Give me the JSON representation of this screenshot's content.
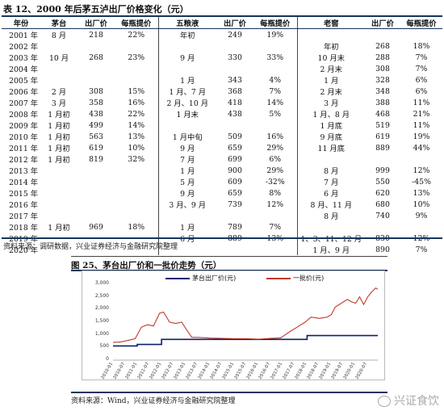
{
  "table": {
    "title": "表 12、2000 年后茅五泸出厂价格变化（元）",
    "headers": [
      "年份",
      "茅台",
      "出厂价",
      "每瓶提价",
      "五粮液",
      "出厂价",
      "每瓶提价",
      "老窖",
      "出厂价",
      "每瓶提价"
    ],
    "rows": [
      [
        "2001 年",
        "8 月",
        "218",
        "22%",
        "年初",
        "249",
        "19%",
        "",
        "",
        ""
      ],
      [
        "2002 年",
        "",
        "",
        "",
        "",
        "",
        "",
        "年初",
        "268",
        "18%"
      ],
      [
        "2003 年",
        "10 月",
        "268",
        "23%",
        "9 月",
        "330",
        "33%",
        "10 月末",
        "288",
        "7%"
      ],
      [
        "2004 年",
        "",
        "",
        "",
        "",
        "",
        "",
        "2 月末",
        "308",
        "7%"
      ],
      [
        "2005 年",
        "",
        "",
        "",
        "1 月",
        "343",
        "4%",
        "1 月",
        "328",
        "6%"
      ],
      [
        "2006 年",
        "2 月",
        "308",
        "15%",
        "1 月、7 月",
        "368",
        "7%",
        "2 月末",
        "348",
        "6%"
      ],
      [
        "2007 年",
        "3 月",
        "358",
        "16%",
        "2 月、10 月",
        "418",
        "14%",
        "3 月",
        "388",
        "11%"
      ],
      [
        "2008 年",
        "1 月初",
        "438",
        "22%",
        "1 月末",
        "438",
        "5%",
        "1 月、8 月",
        "468",
        "21%"
      ],
      [
        "2009 年",
        "1 月初",
        "499",
        "14%",
        "",
        "",
        "",
        "1 月底",
        "519",
        "11%"
      ],
      [
        "2010 年",
        "1 月初",
        "563",
        "13%",
        "1 月中旬",
        "509",
        "16%",
        "9 月底",
        "619",
        "19%"
      ],
      [
        "2011 年",
        "1 月初",
        "619",
        "10%",
        "9 月",
        "659",
        "29%",
        "11 月底",
        "889",
        "44%"
      ],
      [
        "2012 年",
        "1 月初",
        "819",
        "32%",
        "7 月",
        "699",
        "6%",
        "",
        "",
        ""
      ],
      [
        "2013 年",
        "",
        "",
        "",
        "1 月",
        "900",
        "29%",
        "8 月",
        "999",
        "12%"
      ],
      [
        "2014 年",
        "",
        "",
        "",
        "5 月",
        "609",
        "-32%",
        "7 月",
        "550",
        "-45%"
      ],
      [
        "2015 年",
        "",
        "",
        "",
        "9 月",
        "659",
        "8%",
        "6 月",
        "620",
        "13%"
      ],
      [
        "2016 年",
        "",
        "",
        "",
        "3 月、9 月",
        "739",
        "12%",
        "8 月、11 月",
        "680",
        "10%"
      ],
      [
        "2017 年",
        "",
        "",
        "",
        "",
        "",
        "",
        "8 月",
        "740",
        "9%"
      ],
      [
        "2018 年",
        "1 月初",
        "969",
        "18%",
        "1 月",
        "789",
        "7%",
        "",
        "",
        ""
      ],
      [
        "2019 年",
        "",
        "",
        "",
        "6 月",
        "889",
        "13%",
        "1、3、11、12 月",
        "830",
        "12%"
      ],
      [
        "2020 年",
        "",
        "",
        "",
        "",
        "",
        "",
        "1 月、9 月",
        "890",
        "7%"
      ]
    ],
    "source": "资料来源：调研数据，兴业证券经济与金融研究院整理"
  },
  "figure": {
    "title": "图 25、茅台出厂价和一批价走势（元）",
    "source": "资料来源：Wind，兴业证券经济与金融研究院整理",
    "colors": {
      "factory": "#0a1f6e",
      "wholesale": "#c0392b"
    }
  },
  "chart_data": {
    "type": "line",
    "title": "图 25、茅台出厂价和一批价走势（元）",
    "xlabel": "",
    "ylabel": "",
    "ylim": [
      0,
      3000
    ],
    "y_ticks": [
      "3,000",
      "2,500",
      "2,000",
      "1,500",
      "1,000",
      "500",
      "0"
    ],
    "x_ticks": [
      "2010-01",
      "2010-07",
      "2011-01",
      "2011-07",
      "2012-01",
      "2012-07",
      "2013-01",
      "2013-07",
      "2014-01",
      "2014-07",
      "2015-01",
      "2015-07",
      "2016-01",
      "2016-07",
      "2017-01",
      "2017-07",
      "2018-01",
      "2018-07",
      "2019-01",
      "2019-07",
      "2020-01",
      "2020-07"
    ],
    "legend_position": "top",
    "grid": false,
    "series": [
      {
        "name": "茅台出厂价(元)",
        "x": [
          "2010-01",
          "2011-01",
          "2011-01",
          "2012-01",
          "2012-01",
          "2018-01",
          "2018-01",
          "2020-12"
        ],
        "values": [
          563,
          563,
          619,
          619,
          819,
          819,
          969,
          969
        ]
      },
      {
        "name": "一批价(元)",
        "x": [
          "2010-01",
          "2010-05",
          "2010-09",
          "2010-12",
          "2011-03",
          "2011-06",
          "2011-09",
          "2011-12",
          "2012-02",
          "2012-05",
          "2012-08",
          "2012-11",
          "2013-01",
          "2013-04",
          "2013-07",
          "2014-01",
          "2014-07",
          "2015-01",
          "2015-07",
          "2016-01",
          "2016-07",
          "2016-12",
          "2017-04",
          "2017-08",
          "2017-12",
          "2018-03",
          "2018-07",
          "2018-11",
          "2019-01",
          "2019-03",
          "2019-06",
          "2019-09",
          "2019-11",
          "2020-01",
          "2020-03",
          "2020-05",
          "2020-07",
          "2020-09",
          "2020-11",
          "2020-12"
        ],
        "values": [
          700,
          720,
          790,
          850,
          1300,
          1400,
          1350,
          1850,
          1900,
          1500,
          1450,
          1500,
          1250,
          900,
          900,
          870,
          860,
          850,
          850,
          830,
          860,
          880,
          1100,
          1300,
          1500,
          1700,
          1650,
          1700,
          1800,
          2100,
          2250,
          2400,
          2300,
          2250,
          2500,
          2200,
          2500,
          2700,
          2850,
          2800
        ]
      }
    ]
  },
  "watermark": {
    "text": "兴证食饮",
    "icon": "wechat-icon"
  }
}
